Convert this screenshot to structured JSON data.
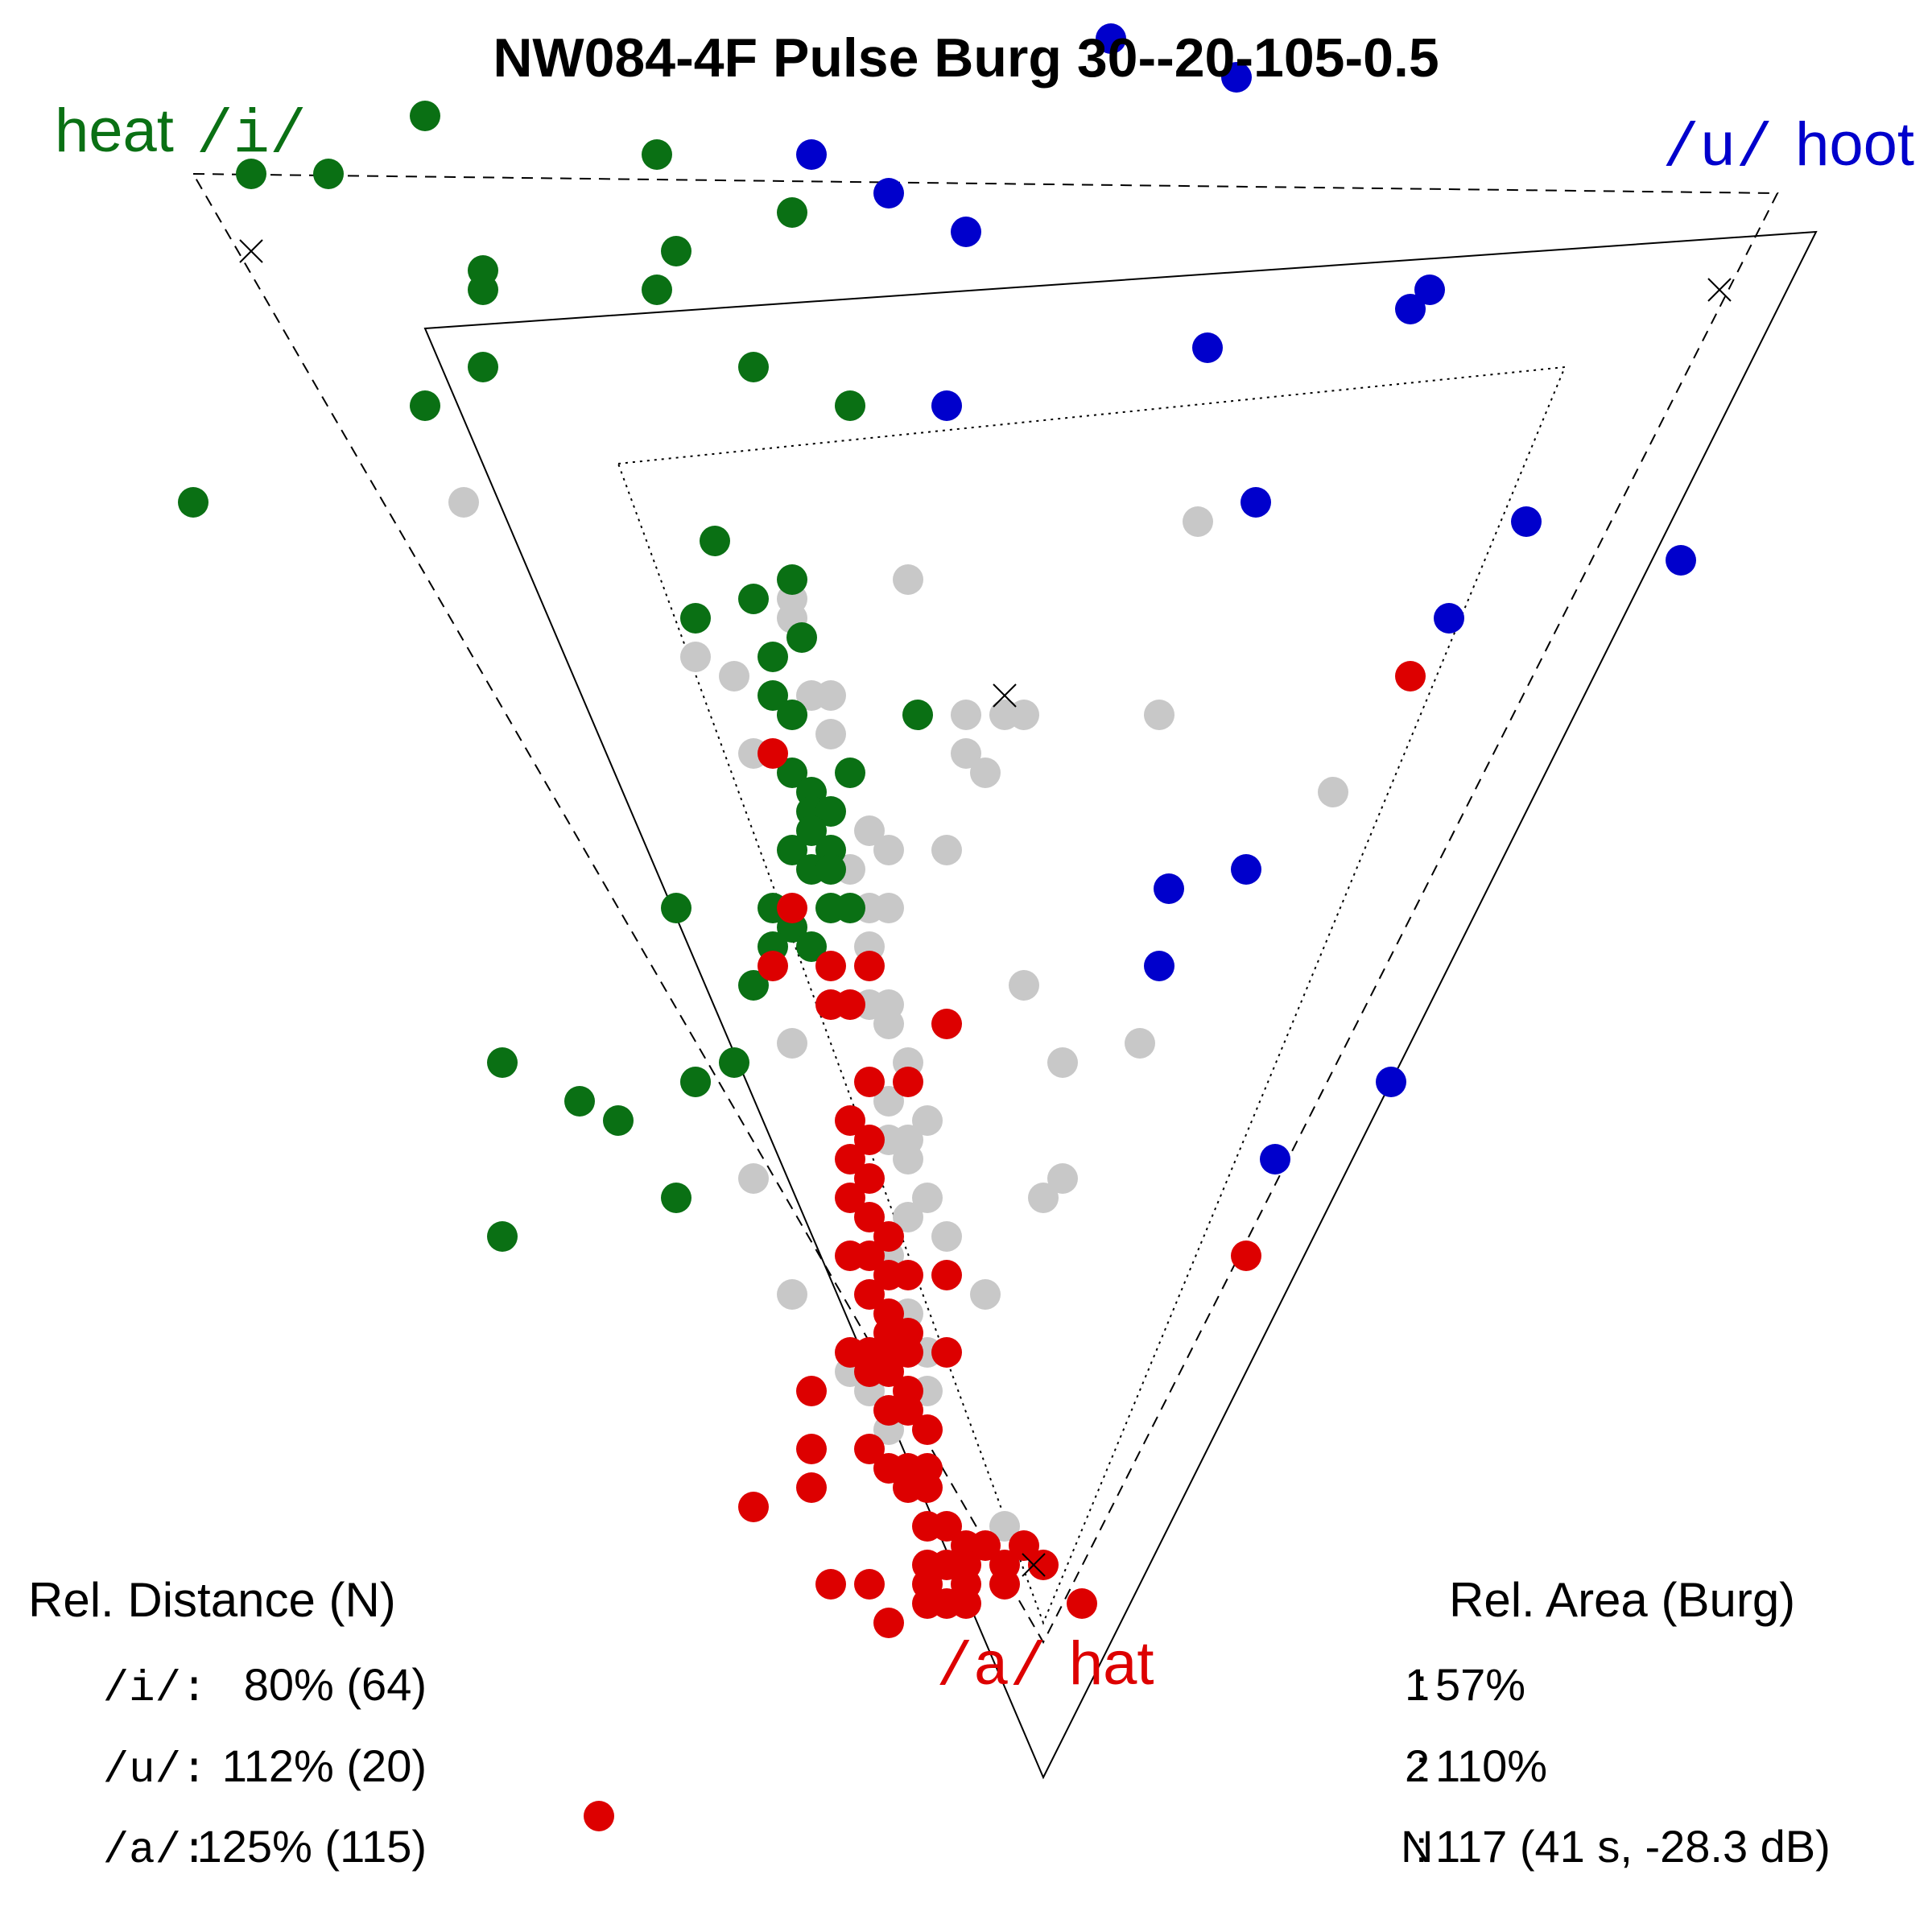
{
  "chart_data": {
    "type": "scatter",
    "title": "NW084-4F Pulse Burg 30--20-105-0.5",
    "corner_labels": {
      "i": {
        "phoneme": "/i/",
        "word": "heat",
        "color": "#0a7014"
      },
      "u": {
        "phoneme": "/u/",
        "word": "hoot",
        "color": "#0000cc"
      },
      "a": {
        "phoneme": "/a/",
        "word": "hat",
        "color": "#dd0000"
      }
    },
    "colors": {
      "i": "#0a7014",
      "u": "#0000cc",
      "a": "#dd0000",
      "other": "#c8c8c8",
      "lines": "#000000"
    },
    "reference_triangles": {
      "outer_dashed": [
        [
          0.1,
          0.91
        ],
        [
          0.92,
          0.9
        ],
        [
          0.54,
          0.15
        ]
      ],
      "solid": [
        [
          0.22,
          0.83
        ],
        [
          0.94,
          0.88
        ],
        [
          0.54,
          0.08
        ]
      ],
      "inner_dotted": [
        [
          0.32,
          0.76
        ],
        [
          0.81,
          0.81
        ],
        [
          0.54,
          0.16
        ]
      ]
    },
    "markers_x": [
      [
        0.13,
        0.87
      ],
      [
        0.89,
        0.85
      ],
      [
        0.52,
        0.64
      ],
      [
        0.535,
        0.19
      ]
    ],
    "series": [
      {
        "name": "/i/",
        "color": "#0a7014",
        "points": [
          [
            0.13,
            0.91
          ],
          [
            0.17,
            0.91
          ],
          [
            0.22,
            0.94
          ],
          [
            0.34,
            0.92
          ],
          [
            0.41,
            0.89
          ],
          [
            0.25,
            0.86
          ],
          [
            0.25,
            0.85
          ],
          [
            0.35,
            0.87
          ],
          [
            0.34,
            0.85
          ],
          [
            0.39,
            0.81
          ],
          [
            0.25,
            0.81
          ],
          [
            0.22,
            0.79
          ],
          [
            0.44,
            0.79
          ],
          [
            0.1,
            0.74
          ],
          [
            0.37,
            0.72
          ],
          [
            0.41,
            0.7
          ],
          [
            0.39,
            0.69
          ],
          [
            0.36,
            0.68
          ],
          [
            0.415,
            0.67
          ],
          [
            0.4,
            0.66
          ],
          [
            0.4,
            0.64
          ],
          [
            0.41,
            0.63
          ],
          [
            0.475,
            0.63
          ],
          [
            0.41,
            0.6
          ],
          [
            0.42,
            0.59
          ],
          [
            0.44,
            0.6
          ],
          [
            0.42,
            0.58
          ],
          [
            0.43,
            0.58
          ],
          [
            0.42,
            0.57
          ],
          [
            0.43,
            0.56
          ],
          [
            0.41,
            0.56
          ],
          [
            0.42,
            0.55
          ],
          [
            0.43,
            0.55
          ],
          [
            0.35,
            0.53
          ],
          [
            0.4,
            0.53
          ],
          [
            0.43,
            0.53
          ],
          [
            0.44,
            0.53
          ],
          [
            0.41,
            0.52
          ],
          [
            0.42,
            0.51
          ],
          [
            0.4,
            0.51
          ],
          [
            0.39,
            0.49
          ],
          [
            0.26,
            0.45
          ],
          [
            0.38,
            0.45
          ],
          [
            0.36,
            0.44
          ],
          [
            0.3,
            0.43
          ],
          [
            0.32,
            0.42
          ],
          [
            0.35,
            0.38
          ],
          [
            0.26,
            0.36
          ]
        ]
      },
      {
        "name": "/u/",
        "color": "#0000cc",
        "points": [
          [
            0.575,
            0.98
          ],
          [
            0.64,
            0.96
          ],
          [
            0.42,
            0.92
          ],
          [
            0.46,
            0.9
          ],
          [
            0.5,
            0.88
          ],
          [
            0.74,
            0.85
          ],
          [
            0.73,
            0.84
          ],
          [
            0.625,
            0.82
          ],
          [
            0.49,
            0.79
          ],
          [
            0.65,
            0.74
          ],
          [
            0.79,
            0.73
          ],
          [
            0.87,
            0.71
          ],
          [
            0.75,
            0.68
          ],
          [
            0.645,
            0.55
          ],
          [
            0.605,
            0.54
          ],
          [
            0.6,
            0.5
          ],
          [
            0.72,
            0.44
          ],
          [
            0.66,
            0.4
          ]
        ]
      },
      {
        "name": "/a/",
        "color": "#dd0000",
        "points": [
          [
            0.73,
            0.65
          ],
          [
            0.4,
            0.61
          ],
          [
            0.41,
            0.53
          ],
          [
            0.4,
            0.5
          ],
          [
            0.43,
            0.5
          ],
          [
            0.45,
            0.5
          ],
          [
            0.43,
            0.48
          ],
          [
            0.44,
            0.48
          ],
          [
            0.49,
            0.47
          ],
          [
            0.45,
            0.44
          ],
          [
            0.47,
            0.44
          ],
          [
            0.44,
            0.42
          ],
          [
            0.45,
            0.41
          ],
          [
            0.44,
            0.4
          ],
          [
            0.45,
            0.39
          ],
          [
            0.44,
            0.38
          ],
          [
            0.45,
            0.37
          ],
          [
            0.46,
            0.36
          ],
          [
            0.44,
            0.35
          ],
          [
            0.45,
            0.35
          ],
          [
            0.46,
            0.34
          ],
          [
            0.47,
            0.34
          ],
          [
            0.49,
            0.34
          ],
          [
            0.45,
            0.33
          ],
          [
            0.46,
            0.32
          ],
          [
            0.47,
            0.31
          ],
          [
            0.46,
            0.31
          ],
          [
            0.44,
            0.3
          ],
          [
            0.45,
            0.3
          ],
          [
            0.46,
            0.3
          ],
          [
            0.47,
            0.3
          ],
          [
            0.49,
            0.3
          ],
          [
            0.45,
            0.29
          ],
          [
            0.46,
            0.29
          ],
          [
            0.47,
            0.28
          ],
          [
            0.42,
            0.28
          ],
          [
            0.46,
            0.27
          ],
          [
            0.47,
            0.27
          ],
          [
            0.48,
            0.26
          ],
          [
            0.42,
            0.25
          ],
          [
            0.45,
            0.25
          ],
          [
            0.46,
            0.24
          ],
          [
            0.47,
            0.24
          ],
          [
            0.48,
            0.24
          ],
          [
            0.42,
            0.23
          ],
          [
            0.47,
            0.23
          ],
          [
            0.48,
            0.23
          ],
          [
            0.39,
            0.22
          ],
          [
            0.48,
            0.21
          ],
          [
            0.49,
            0.21
          ],
          [
            0.5,
            0.2
          ],
          [
            0.51,
            0.2
          ],
          [
            0.53,
            0.2
          ],
          [
            0.48,
            0.19
          ],
          [
            0.49,
            0.19
          ],
          [
            0.5,
            0.19
          ],
          [
            0.52,
            0.19
          ],
          [
            0.54,
            0.19
          ],
          [
            0.43,
            0.18
          ],
          [
            0.45,
            0.18
          ],
          [
            0.48,
            0.18
          ],
          [
            0.5,
            0.18
          ],
          [
            0.52,
            0.18
          ],
          [
            0.56,
            0.17
          ],
          [
            0.48,
            0.17
          ],
          [
            0.49,
            0.17
          ],
          [
            0.5,
            0.17
          ],
          [
            0.46,
            0.16
          ],
          [
            0.31,
            0.06
          ],
          [
            0.645,
            0.35
          ]
        ]
      },
      {
        "name": "other",
        "color": "#c8c8c8",
        "points": [
          [
            0.24,
            0.74
          ],
          [
            0.62,
            0.73
          ],
          [
            0.47,
            0.7
          ],
          [
            0.41,
            0.69
          ],
          [
            0.41,
            0.68
          ],
          [
            0.36,
            0.66
          ],
          [
            0.38,
            0.65
          ],
          [
            0.42,
            0.64
          ],
          [
            0.43,
            0.64
          ],
          [
            0.41,
            0.63
          ],
          [
            0.5,
            0.63
          ],
          [
            0.52,
            0.63
          ],
          [
            0.53,
            0.63
          ],
          [
            0.6,
            0.63
          ],
          [
            0.43,
            0.62
          ],
          [
            0.39,
            0.61
          ],
          [
            0.5,
            0.61
          ],
          [
            0.51,
            0.6
          ],
          [
            0.69,
            0.59
          ],
          [
            0.45,
            0.57
          ],
          [
            0.46,
            0.56
          ],
          [
            0.49,
            0.56
          ],
          [
            0.44,
            0.55
          ],
          [
            0.45,
            0.53
          ],
          [
            0.46,
            0.53
          ],
          [
            0.45,
            0.51
          ],
          [
            0.46,
            0.48
          ],
          [
            0.45,
            0.48
          ],
          [
            0.46,
            0.47
          ],
          [
            0.53,
            0.49
          ],
          [
            0.59,
            0.46
          ],
          [
            0.41,
            0.46
          ],
          [
            0.47,
            0.45
          ],
          [
            0.55,
            0.45
          ],
          [
            0.36,
            0.44
          ],
          [
            0.46,
            0.43
          ],
          [
            0.48,
            0.42
          ],
          [
            0.47,
            0.41
          ],
          [
            0.46,
            0.41
          ],
          [
            0.47,
            0.4
          ],
          [
            0.39,
            0.39
          ],
          [
            0.48,
            0.38
          ],
          [
            0.55,
            0.39
          ],
          [
            0.54,
            0.38
          ],
          [
            0.47,
            0.37
          ],
          [
            0.49,
            0.36
          ],
          [
            0.46,
            0.35
          ],
          [
            0.41,
            0.33
          ],
          [
            0.51,
            0.33
          ],
          [
            0.47,
            0.32
          ],
          [
            0.48,
            0.3
          ],
          [
            0.44,
            0.29
          ],
          [
            0.48,
            0.28
          ],
          [
            0.45,
            0.28
          ],
          [
            0.46,
            0.26
          ],
          [
            0.52,
            0.21
          ],
          [
            0.36,
            0.44
          ]
        ]
      }
    ]
  },
  "stats": {
    "rel_distance": {
      "heading": "Rel. Distance (N)",
      "rows": [
        {
          "label": "/i/",
          "value": "80% (64)"
        },
        {
          "label": "/u/",
          "value": "112% (20)"
        },
        {
          "label": "/a/",
          "value": "125% (115)"
        }
      ]
    },
    "rel_area": {
      "heading": "Rel. Area (Burg)",
      "rows": [
        {
          "label": "1",
          "value": "57%"
        },
        {
          "label": "2",
          "value": "110%"
        },
        {
          "label": "N",
          "value": "117 (41 s, -28.3 dB)"
        }
      ]
    }
  }
}
